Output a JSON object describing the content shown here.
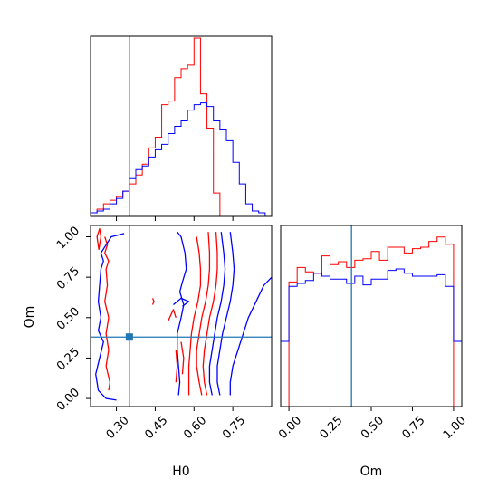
{
  "chart_data": {
    "type": "corner",
    "params": [
      "H0",
      "Om"
    ],
    "truth": {
      "H0": 0.35,
      "Om": 0.38
    },
    "colors": {
      "series_a": "#ff0000",
      "series_b": "#0000ff",
      "truth": "#1f77b4"
    },
    "panels": {
      "h0_hist": {
        "xlim": [
          0.2,
          0.9
        ],
        "ymax": 1.0,
        "xticks": [
          0.3,
          0.45,
          0.6,
          0.75
        ],
        "series": [
          {
            "color": "#ff0000",
            "bins": [
              [
                0.2,
                0.02
              ],
              [
                0.225,
                0.04
              ],
              [
                0.25,
                0.07
              ],
              [
                0.275,
                0.09
              ],
              [
                0.3,
                0.11
              ],
              [
                0.325,
                0.14
              ],
              [
                0.35,
                0.18
              ],
              [
                0.375,
                0.23
              ],
              [
                0.4,
                0.29
              ],
              [
                0.425,
                0.38
              ],
              [
                0.45,
                0.44
              ],
              [
                0.475,
                0.62
              ],
              [
                0.5,
                0.64
              ],
              [
                0.525,
                0.77
              ],
              [
                0.55,
                0.82
              ],
              [
                0.575,
                0.84
              ],
              [
                0.6,
                0.99
              ],
              [
                0.625,
                0.68
              ],
              [
                0.65,
                0.49
              ],
              [
                0.675,
                0.13
              ],
              [
                0.7,
                0.0
              ]
            ]
          },
          {
            "color": "#0000ff",
            "bins": [
              [
                0.2,
                0.02
              ],
              [
                0.225,
                0.03
              ],
              [
                0.25,
                0.04
              ],
              [
                0.275,
                0.07
              ],
              [
                0.3,
                0.1
              ],
              [
                0.325,
                0.14
              ],
              [
                0.35,
                0.21
              ],
              [
                0.375,
                0.26
              ],
              [
                0.4,
                0.28
              ],
              [
                0.425,
                0.33
              ],
              [
                0.45,
                0.37
              ],
              [
                0.475,
                0.4
              ],
              [
                0.5,
                0.46
              ],
              [
                0.525,
                0.5
              ],
              [
                0.55,
                0.53
              ],
              [
                0.575,
                0.59
              ],
              [
                0.6,
                0.62
              ],
              [
                0.625,
                0.63
              ],
              [
                0.65,
                0.61
              ],
              [
                0.675,
                0.53
              ],
              [
                0.7,
                0.48
              ],
              [
                0.725,
                0.42
              ],
              [
                0.75,
                0.3
              ],
              [
                0.775,
                0.18
              ],
              [
                0.8,
                0.07
              ],
              [
                0.825,
                0.03
              ],
              [
                0.85,
                0.02
              ]
            ]
          }
        ]
      },
      "om_hist": {
        "xlim": [
          -0.05,
          1.05
        ],
        "ymax": 1.25,
        "xticks": [
          0.0,
          0.25,
          0.5,
          0.75,
          1.0
        ],
        "series": [
          {
            "color": "#ff0000",
            "bins": [
              [
                0.0,
                0.86
              ],
              [
                0.05,
                0.96
              ],
              [
                0.1,
                0.93
              ],
              [
                0.15,
                0.92
              ],
              [
                0.2,
                1.04
              ],
              [
                0.25,
                0.98
              ],
              [
                0.3,
                1.0
              ],
              [
                0.35,
                0.96
              ],
              [
                0.4,
                1.01
              ],
              [
                0.45,
                1.02
              ],
              [
                0.5,
                1.07
              ],
              [
                0.55,
                1.01
              ],
              [
                0.6,
                1.1
              ],
              [
                0.65,
                1.1
              ],
              [
                0.7,
                1.06
              ],
              [
                0.75,
                1.09
              ],
              [
                0.8,
                1.1
              ],
              [
                0.85,
                1.14
              ],
              [
                0.9,
                1.17
              ],
              [
                0.95,
                1.12
              ],
              [
                1.0,
                0.0
              ]
            ]
          },
          {
            "color": "#0000ff",
            "bins": [
              [
                -0.05,
                0.45
              ],
              [
                0.0,
                0.83
              ],
              [
                0.05,
                0.85
              ],
              [
                0.1,
                0.87
              ],
              [
                0.15,
                0.92
              ],
              [
                0.2,
                0.9
              ],
              [
                0.25,
                0.88
              ],
              [
                0.3,
                0.88
              ],
              [
                0.35,
                0.85
              ],
              [
                0.4,
                0.9
              ],
              [
                0.45,
                0.84
              ],
              [
                0.5,
                0.88
              ],
              [
                0.55,
                0.88
              ],
              [
                0.6,
                0.94
              ],
              [
                0.65,
                0.95
              ],
              [
                0.7,
                0.92
              ],
              [
                0.75,
                0.9
              ],
              [
                0.8,
                0.9
              ],
              [
                0.85,
                0.9
              ],
              [
                0.9,
                0.91
              ],
              [
                0.95,
                0.83
              ],
              [
                1.0,
                0.45
              ]
            ]
          }
        ]
      },
      "joint": {
        "xlim": [
          0.2,
          0.9
        ],
        "ylim": [
          -0.05,
          1.07
        ],
        "xticks": [
          0.3,
          0.45,
          0.6,
          0.75
        ],
        "yticks": [
          0.0,
          0.25,
          0.5,
          0.75,
          1.0
        ],
        "contours": [
          {
            "color": "#0000ff",
            "points": [
              [
                0.535,
                1.03
              ],
              [
                0.55,
                1.0
              ],
              [
                0.565,
                0.9
              ],
              [
                0.57,
                0.8
              ],
              [
                0.555,
                0.72
              ],
              [
                0.545,
                0.66
              ],
              [
                0.56,
                0.58
              ],
              [
                0.55,
                0.5
              ],
              [
                0.535,
                0.4
              ],
              [
                0.535,
                0.3
              ],
              [
                0.54,
                0.2
              ],
              [
                0.545,
                0.1
              ],
              [
                0.54,
                0.02
              ]
            ]
          },
          {
            "color": "#ff0000",
            "points": [
              [
                0.61,
                1.0
              ],
              [
                0.62,
                0.9
              ],
              [
                0.625,
                0.8
              ],
              [
                0.625,
                0.7
              ],
              [
                0.615,
                0.6
              ],
              [
                0.6,
                0.5
              ],
              [
                0.59,
                0.4
              ],
              [
                0.585,
                0.3
              ],
              [
                0.58,
                0.2
              ],
              [
                0.58,
                0.1
              ],
              [
                0.58,
                0.02
              ]
            ]
          },
          {
            "color": "#ff0000",
            "points": [
              [
                0.655,
                1.03
              ],
              [
                0.66,
                0.9
              ],
              [
                0.66,
                0.8
              ],
              [
                0.655,
                0.7
              ],
              [
                0.645,
                0.6
              ],
              [
                0.63,
                0.5
              ],
              [
                0.62,
                0.4
              ],
              [
                0.61,
                0.3
              ],
              [
                0.61,
                0.2
              ],
              [
                0.62,
                0.1
              ],
              [
                0.63,
                0.02
              ]
            ]
          },
          {
            "color": "#ff0000",
            "points": [
              [
                0.685,
                1.03
              ],
              [
                0.69,
                0.9
              ],
              [
                0.69,
                0.8
              ],
              [
                0.685,
                0.7
              ],
              [
                0.675,
                0.6
              ],
              [
                0.66,
                0.5
              ],
              [
                0.65,
                0.4
              ],
              [
                0.64,
                0.3
              ],
              [
                0.635,
                0.2
              ],
              [
                0.64,
                0.1
              ],
              [
                0.65,
                0.02
              ]
            ]
          },
          {
            "color": "#0000ff",
            "points": [
              [
                0.705,
                1.03
              ],
              [
                0.715,
                0.9
              ],
              [
                0.72,
                0.8
              ],
              [
                0.715,
                0.7
              ],
              [
                0.705,
                0.6
              ],
              [
                0.69,
                0.5
              ],
              [
                0.68,
                0.4
              ],
              [
                0.67,
                0.3
              ],
              [
                0.66,
                0.2
              ],
              [
                0.66,
                0.1
              ],
              [
                0.67,
                0.02
              ]
            ]
          },
          {
            "color": "#0000ff",
            "points": [
              [
                0.74,
                1.03
              ],
              [
                0.75,
                0.9
              ],
              [
                0.755,
                0.8
              ],
              [
                0.75,
                0.7
              ],
              [
                0.74,
                0.6
              ],
              [
                0.725,
                0.5
              ],
              [
                0.71,
                0.4
              ],
              [
                0.7,
                0.3
              ],
              [
                0.69,
                0.2
              ],
              [
                0.69,
                0.1
              ],
              [
                0.7,
                0.02
              ]
            ]
          },
          {
            "color": "#0000ff",
            "points": [
              [
                0.9,
                0.75
              ],
              [
                0.87,
                0.7
              ],
              [
                0.84,
                0.6
              ],
              [
                0.81,
                0.5
              ],
              [
                0.79,
                0.4
              ],
              [
                0.77,
                0.3
              ],
              [
                0.75,
                0.2
              ],
              [
                0.74,
                0.1
              ],
              [
                0.74,
                0.02
              ]
            ]
          },
          {
            "color": "#ff0000",
            "points": [
              [
                0.255,
                1.0
              ],
              [
                0.265,
                0.95
              ],
              [
                0.255,
                0.9
              ],
              [
                0.27,
                0.85
              ],
              [
                0.26,
                0.8
              ],
              [
                0.265,
                0.7
              ],
              [
                0.255,
                0.6
              ],
              [
                0.27,
                0.5
              ],
              [
                0.26,
                0.4
              ],
              [
                0.27,
                0.3
              ],
              [
                0.26,
                0.2
              ],
              [
                0.275,
                0.1
              ],
              [
                0.27,
                0.05
              ]
            ]
          },
          {
            "color": "#0000ff",
            "points": [
              [
                0.33,
                1.02
              ],
              [
                0.28,
                1.0
              ],
              [
                0.26,
                0.95
              ],
              [
                0.24,
                0.9
              ],
              [
                0.25,
                0.85
              ],
              [
                0.24,
                0.8
              ],
              [
                0.235,
                0.7
              ],
              [
                0.23,
                0.6
              ],
              [
                0.24,
                0.5
              ],
              [
                0.23,
                0.42
              ],
              [
                0.25,
                0.35
              ],
              [
                0.235,
                0.25
              ],
              [
                0.22,
                0.15
              ],
              [
                0.23,
                0.05
              ],
              [
                0.26,
                0.0
              ],
              [
                0.3,
                -0.01
              ]
            ]
          },
          {
            "color": "#ff0000",
            "points": [
              [
                0.232,
                0.92
              ],
              [
                0.24,
                1.0
              ],
              [
                0.235,
                1.05
              ],
              [
                0.225,
                1.0
              ],
              [
                0.232,
                0.92
              ]
            ]
          },
          {
            "color": "#ff0000",
            "points": [
              [
                0.44,
                0.58
              ],
              [
                0.445,
                0.6
              ],
              [
                0.44,
                0.62
              ]
            ]
          },
          {
            "color": "#ff0000",
            "points": [
              [
                0.5,
                0.48
              ],
              [
                0.52,
                0.55
              ],
              [
                0.53,
                0.5
              ]
            ]
          },
          {
            "color": "#0000ff",
            "points": [
              [
                0.52,
                0.58
              ],
              [
                0.55,
                0.62
              ],
              [
                0.58,
                0.6
              ],
              [
                0.555,
                0.57
              ]
            ]
          },
          {
            "color": "#ff0000",
            "points": [
              [
                0.53,
                0.3
              ],
              [
                0.535,
                0.2
              ],
              [
                0.53,
                0.1
              ]
            ]
          },
          {
            "color": "#ff0000",
            "points": [
              [
                0.55,
                0.35
              ],
              [
                0.56,
                0.25
              ],
              [
                0.555,
                0.15
              ]
            ]
          }
        ]
      }
    }
  }
}
